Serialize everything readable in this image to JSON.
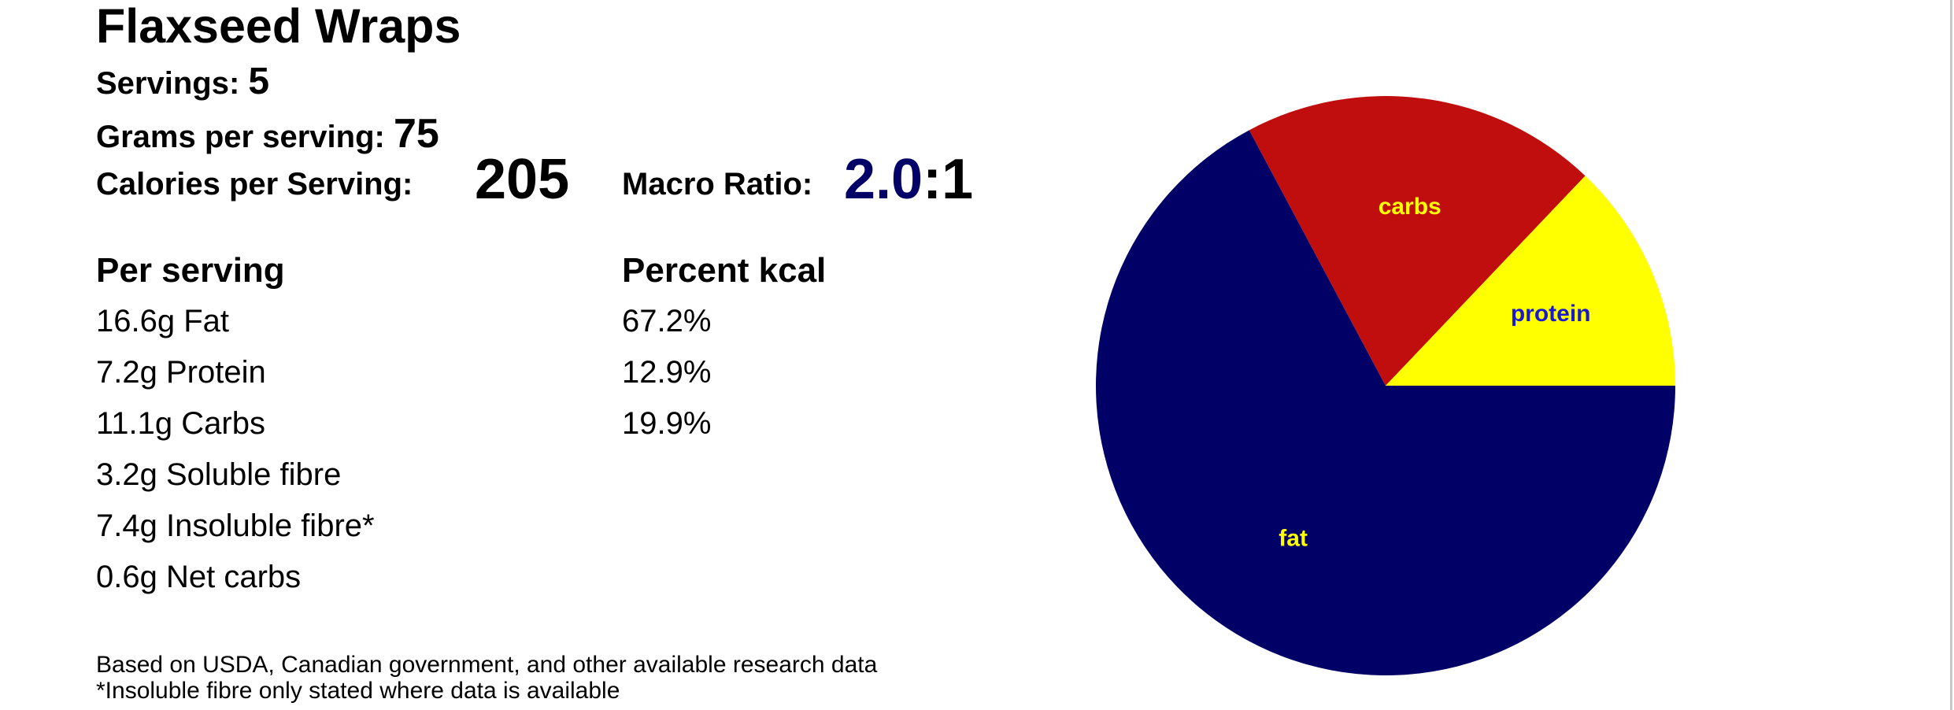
{
  "recipe": {
    "title": "Flaxseed Wraps",
    "servings_label": "Servings:",
    "servings_value": "5",
    "grams_label": "Grams per serving:",
    "grams_value": "75",
    "calories_label": "Calories per Serving:",
    "calories_value": "205",
    "ratio_label": "Macro Ratio:",
    "ratio_value": "2.0",
    "ratio_suffix": ":1"
  },
  "table": {
    "per_serving_header": "Per serving",
    "percent_header": "Percent kcal",
    "rows": [
      {
        "amount": "16.6g Fat",
        "percent": "67.2%"
      },
      {
        "amount": "7.2g Protein",
        "percent": "12.9%"
      },
      {
        "amount": "11.1g Carbs",
        "percent": "19.9%"
      },
      {
        "amount": "3.2g Soluble fibre",
        "percent": ""
      },
      {
        "amount": "7.4g Insoluble fibre*",
        "percent": ""
      },
      {
        "amount": "0.6g Net carbs",
        "percent": ""
      }
    ]
  },
  "notes": [
    "Based on USDA, Canadian government, and other available research data",
    "*Insoluble fibre only stated where data is available"
  ],
  "chart_data": {
    "type": "pie",
    "slices": [
      {
        "label": "fat",
        "value": 67.2,
        "color": "#000066",
        "label_color": "#ffff00"
      },
      {
        "label": "carbs",
        "value": 19.9,
        "color": "#c00d0d",
        "label_color": "#ffff00"
      },
      {
        "label": "protein",
        "value": 12.9,
        "color": "#ffff00",
        "label_color": "#1a1acc"
      }
    ],
    "start_angle_deg": 0,
    "direction": "clockwise"
  }
}
